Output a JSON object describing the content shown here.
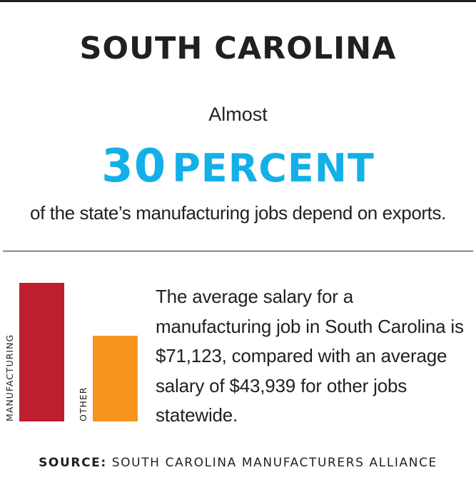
{
  "header": {
    "title": "SOUTH CAROLINA"
  },
  "stat": {
    "lead": "Almost",
    "number": "30",
    "unit": "PERCENT",
    "caption": "of the state’s manufacturing jobs depend on exports."
  },
  "colors": {
    "title": "#231f20",
    "accent_blue": "#13afe8",
    "manufacturing_bar": "#be1e2d",
    "other_bar": "#f7941d"
  },
  "note": {
    "text": "The average salary for a manufacturing job in South Carolina is $71,123, compared with an average salary of $43,939 for other jobs statewide."
  },
  "chart_data": {
    "type": "bar",
    "categories": [
      "MANUFACTURING",
      "OTHER"
    ],
    "values": [
      71123,
      43939
    ],
    "title": "",
    "xlabel": "",
    "ylabel": "",
    "ylim": [
      0,
      71123
    ],
    "grid": false,
    "legend": "none",
    "colors": [
      "#be1e2d",
      "#f7941d"
    ]
  },
  "footer": {
    "source_label": "SOURCE:",
    "source_text": "SOUTH CAROLINA MANUFACTURERS ALLIANCE"
  }
}
